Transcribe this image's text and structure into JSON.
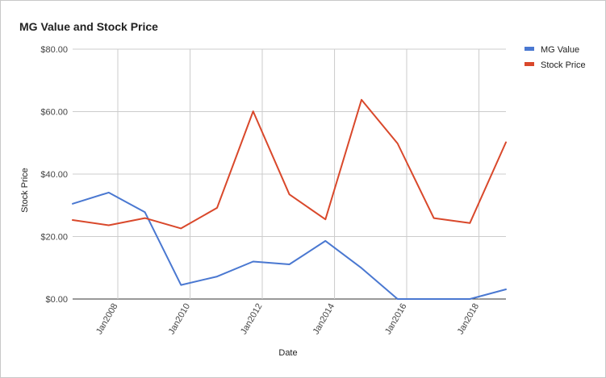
{
  "chart_data": {
    "type": "line",
    "title": "MG Value and Stock Price",
    "xlabel": "Date",
    "ylabel": "Stock Price",
    "x": [
      "2006-10-01",
      "2007-10-01",
      "2008-10-01",
      "2009-10-01",
      "2010-10-01",
      "2011-10-01",
      "2012-10-01",
      "2013-10-01",
      "2014-10-01",
      "2015-10-01",
      "2016-10-01",
      "2017-10-01",
      "2018-10-01"
    ],
    "x_ticks": [
      "2008-01-01",
      "2010-01-01",
      "2012-01-01",
      "2014-01-01",
      "2016-01-01",
      "2018-01-01"
    ],
    "x_tick_labels": [
      "Jan2008",
      "Jan2010",
      "Jan2012",
      "Jan2014",
      "Jan2016",
      "Jan2018"
    ],
    "xlim": [
      "2006-10-01",
      "2018-10-01"
    ],
    "ylim": [
      0,
      80
    ],
    "y_ticks": [
      0,
      20,
      40,
      60,
      80
    ],
    "y_tick_labels": [
      "$0.00",
      "$20.00",
      "$40.00",
      "$60.00",
      "$80.00"
    ],
    "grid": true,
    "legend_position": "right",
    "series": [
      {
        "name": "MG Value",
        "color": "#4a78d1",
        "values": [
          30.5,
          34.1,
          27.8,
          4.5,
          7.2,
          12.0,
          11.1,
          18.6,
          9.9,
          0,
          0,
          0,
          3.1
        ]
      },
      {
        "name": "Stock Price",
        "color": "#d9482b",
        "values": [
          25.3,
          23.6,
          25.9,
          22.6,
          29.2,
          60.1,
          33.5,
          25.5,
          63.8,
          49.8,
          25.9,
          24.3,
          50.2
        ]
      }
    ]
  }
}
